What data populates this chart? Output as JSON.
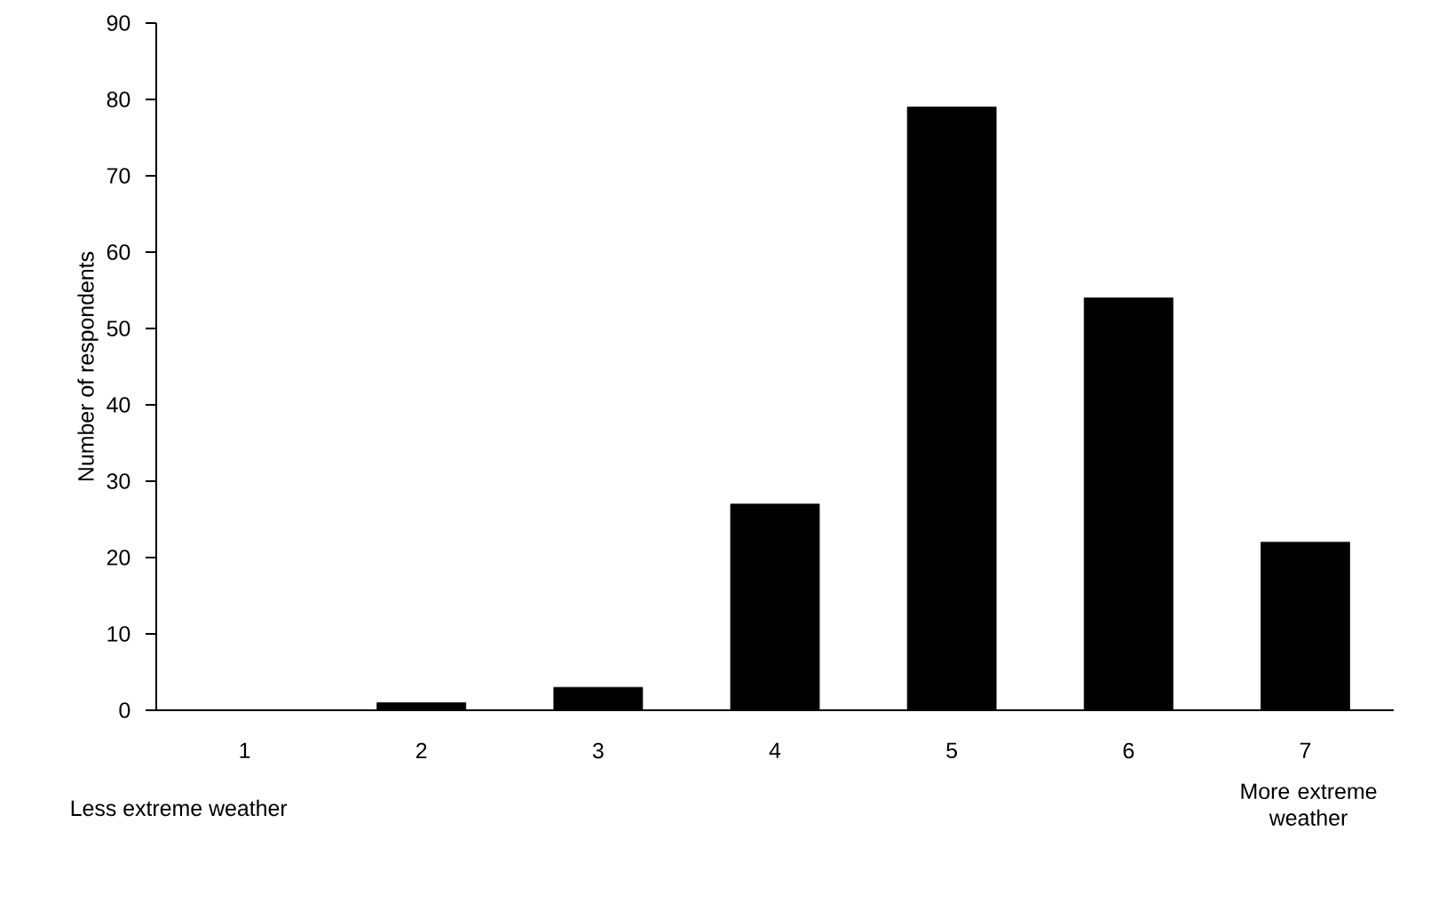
{
  "chart_data": {
    "type": "bar",
    "ylabel": "Number of respondents",
    "categories": [
      "1",
      "2",
      "3",
      "4",
      "5",
      "6",
      "7"
    ],
    "values": [
      0,
      1,
      3,
      27,
      79,
      54,
      22
    ],
    "color": "#000000",
    "ylim": [
      0,
      90
    ],
    "yticks": [
      0,
      10,
      20,
      30,
      40,
      50,
      60,
      70,
      80,
      90
    ],
    "grid": false,
    "annotations": [
      "Less extreme weather",
      "More extreme weather"
    ]
  }
}
